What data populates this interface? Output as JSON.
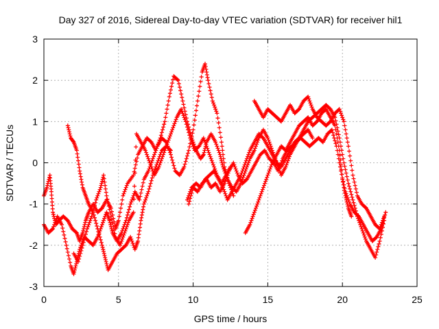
{
  "chart_data": {
    "type": "scatter",
    "title": "Day 327 of 2016, Sidereal Day-to-day VTEC variation (SDTVAR) for receiver hil1",
    "xlabel": "GPS time / hours",
    "ylabel": "SDTVAR / TECUs",
    "xlim": [
      0,
      25
    ],
    "ylim": [
      -3,
      3
    ],
    "xticks": [
      0,
      5,
      10,
      15,
      20,
      25
    ],
    "yticks": [
      -3,
      -2,
      -1,
      0,
      1,
      2,
      3
    ],
    "grid": true,
    "marker": "plus",
    "color": "#ff0000",
    "series": [
      {
        "x": [
          0.0,
          0.2,
          0.4,
          0.5,
          0.6,
          0.8,
          1.0,
          1.3,
          1.6,
          1.9,
          2.2,
          2.4,
          2.6,
          2.8,
          3.0,
          3.3,
          3.6,
          3.9,
          4.2,
          4.5,
          4.8,
          5.0,
          5.3,
          5.6,
          6.0,
          6.3,
          6.6,
          6.9,
          7.2,
          7.5,
          7.8,
          8.1,
          8.4,
          8.7,
          9.0,
          9.3,
          9.6,
          9.9,
          10.2,
          10.5,
          10.7,
          10.9,
          11.2,
          11.5,
          11.8,
          12.0,
          12.3,
          12.6,
          12.9,
          13.2,
          13.5,
          13.8,
          14.1,
          14.4,
          14.7,
          15.0,
          15.3,
          15.6,
          15.9,
          16.2,
          16.5,
          16.8,
          17.1,
          17.4,
          17.7,
          18.0,
          18.3,
          18.6,
          18.9,
          19.2,
          19.5,
          19.8,
          20.1,
          20.4,
          20.7,
          21.0,
          21.3,
          21.6,
          21.9,
          22.2,
          22.5,
          22.8
        ],
        "y": [
          -0.8,
          -0.6,
          -0.3,
          -0.7,
          -1.2,
          -1.5,
          -1.4,
          -1.3,
          -1.4,
          -1.6,
          -1.7,
          -1.9,
          -1.7,
          -1.4,
          -1.2,
          -1.0,
          -1.2,
          -1.1,
          -0.9,
          -1.1,
          -1.6,
          -1.4,
          -0.8,
          -0.5,
          -0.3,
          0.2,
          0.4,
          0.6,
          0.5,
          0.3,
          0.6,
          1.0,
          1.6,
          2.1,
          2.0,
          1.5,
          1.0,
          0.6,
          0.3,
          0.1,
          0.2,
          0.5,
          0.7,
          0.5,
          0.2,
          -0.1,
          -0.4,
          -0.6,
          -0.7,
          -0.5,
          -0.2,
          0.1,
          0.3,
          0.6,
          0.8,
          0.6,
          0.3,
          0.0,
          -0.1,
          0.1,
          0.3,
          0.5,
          0.6,
          0.8,
          1.0,
          1.1,
          1.2,
          1.3,
          1.4,
          1.3,
          1.1,
          0.6,
          0.0,
          -0.5,
          -0.9,
          -1.3,
          -1.6,
          -1.9,
          -2.1,
          -2.3,
          -1.9,
          -1.4
        ]
      },
      {
        "x": [
          0.0,
          0.3,
          0.6,
          0.9,
          1.2,
          1.5,
          1.8,
          2.0,
          2.2,
          2.4,
          2.7,
          3.0,
          3.3,
          3.6,
          3.9,
          4.2,
          4.4,
          4.6,
          4.9,
          5.2,
          5.5,
          5.8,
          6.1,
          6.4,
          6.7,
          7.0,
          7.3,
          7.6,
          7.9,
          8.2,
          8.5,
          8.8,
          9.1,
          9.4,
          9.7,
          10.0,
          10.3,
          10.6,
          10.8,
          11.0,
          11.3,
          11.6,
          11.9,
          12.1,
          12.4,
          12.7
        ],
        "y": [
          -1.5,
          -1.7,
          -1.6,
          -1.3,
          -1.5,
          -2.0,
          -2.5,
          -2.7,
          -2.4,
          -2.1,
          -1.8,
          -1.9,
          -2.0,
          -1.8,
          -1.5,
          -1.2,
          -1.4,
          -1.7,
          -1.9,
          -1.7,
          -1.4,
          -1.0,
          -0.7,
          -0.9,
          -0.4,
          -0.2,
          0.1,
          0.4,
          0.6,
          0.5,
          0.2,
          -0.2,
          -0.3,
          -0.1,
          0.3,
          0.8,
          1.5,
          2.2,
          2.4,
          2.0,
          1.5,
          1.2,
          0.5,
          -0.1,
          -0.5,
          -0.8
        ]
      },
      {
        "x": [
          1.6,
          1.8,
          2.0,
          2.2,
          2.4,
          2.6,
          2.8,
          3.0,
          3.3,
          3.6,
          3.9,
          4.1,
          4.3,
          4.6,
          4.9,
          5.2,
          5.5,
          5.8,
          6.1,
          6.3,
          6.5,
          6.7,
          7.0,
          7.3,
          7.6,
          7.9,
          8.2,
          8.5
        ],
        "y": [
          0.9,
          0.6,
          0.5,
          0.3,
          -0.2,
          -0.6,
          -0.8,
          -1.0,
          -1.2,
          -1.6,
          -2.0,
          -2.3,
          -2.6,
          -2.4,
          -2.2,
          -2.1,
          -2.0,
          -1.8,
          -2.1,
          -1.9,
          -1.4,
          -1.0,
          -0.7,
          -0.3,
          0.0,
          0.3,
          0.4,
          0.3
        ]
      },
      {
        "x": [
          2.0,
          2.3,
          2.6,
          2.9,
          3.2,
          3.5,
          3.8,
          4.0,
          4.2,
          4.5,
          4.8,
          5.1,
          5.4,
          5.7,
          6.0,
          6.2,
          6.5,
          6.8,
          7.1,
          7.4,
          7.7,
          8.0,
          8.3,
          8.6,
          8.9,
          9.2,
          9.5,
          9.8,
          10.1,
          10.4,
          10.7,
          11.0,
          11.3,
          11.6,
          11.9,
          12.2,
          12.5
        ],
        "y": [
          -2.2,
          -2.4,
          -2.0,
          -1.6,
          -1.3,
          -0.9,
          -0.6,
          -0.3,
          -0.8,
          -1.3,
          -1.8,
          -2.0,
          -1.7,
          -1.4,
          -1.2,
          0.7,
          0.5,
          0.3,
          0.0,
          -0.3,
          -0.1,
          0.2,
          0.5,
          0.8,
          1.1,
          1.3,
          1.0,
          0.6,
          0.3,
          0.4,
          0.6,
          0.3,
          0.0,
          -0.3,
          -0.5,
          -0.3,
          -0.1
        ]
      },
      {
        "x": [
          9.7,
          10.0,
          10.3,
          10.6,
          10.9,
          11.2,
          11.5,
          11.8,
          12.1,
          12.4,
          12.7,
          13.0,
          13.3,
          13.6,
          13.9,
          14.2,
          14.5,
          14.8,
          15.1,
          15.4,
          15.7,
          16.0,
          16.3,
          16.6,
          16.9,
          17.2,
          17.5,
          17.8,
          18.1,
          18.4,
          18.7,
          19.0,
          19.3,
          19.6,
          19.9,
          20.2,
          20.5,
          20.8,
          21.1,
          21.4,
          21.7,
          22.0,
          22.3,
          22.6,
          22.9
        ],
        "y": [
          -1.0,
          -0.6,
          -0.7,
          -0.5,
          -0.4,
          -0.6,
          -0.5,
          -0.7,
          -0.5,
          -0.2,
          0.0,
          -0.3,
          -0.5,
          -0.4,
          -0.2,
          0.0,
          0.2,
          0.3,
          0.1,
          0.0,
          -0.2,
          0.1,
          0.3,
          0.4,
          0.5,
          0.6,
          0.5,
          0.4,
          0.5,
          0.6,
          0.5,
          0.7,
          0.8,
          0.4,
          -0.2,
          -0.7,
          -1.0,
          -1.2,
          -1.3,
          -1.5,
          -1.7,
          -1.9,
          -1.8,
          -1.6,
          -1.2
        ]
      },
      {
        "x": [
          13.5,
          13.8,
          14.1,
          14.4,
          14.7,
          15.0,
          15.3,
          15.6,
          15.9,
          16.2,
          16.5,
          16.8,
          17.1,
          17.4,
          17.7,
          18.0,
          18.3,
          18.6,
          18.9,
          19.2,
          19.5,
          19.8,
          20.0,
          20.2,
          20.4,
          20.6
        ],
        "y": [
          -1.7,
          -1.5,
          -1.2,
          -0.9,
          -0.6,
          -0.3,
          0.0,
          0.2,
          0.4,
          0.3,
          0.5,
          0.7,
          0.9,
          1.0,
          1.1,
          0.9,
          1.0,
          1.2,
          1.3,
          1.1,
          0.9,
          0.3,
          -0.4,
          -0.8,
          -1.1,
          -1.3
        ]
      },
      {
        "x": [
          14.1,
          14.4,
          14.7,
          15.0,
          15.3,
          15.6,
          15.9,
          16.2,
          16.5,
          16.8,
          17.1,
          17.4,
          17.7,
          18.0,
          18.3,
          18.6,
          18.9,
          19.2,
          19.5,
          19.8,
          20.1,
          20.4,
          20.7,
          21.0,
          21.3,
          21.6,
          21.9,
          22.2,
          22.5,
          22.8
        ],
        "y": [
          1.5,
          1.3,
          1.1,
          1.3,
          1.2,
          1.1,
          1.0,
          1.2,
          1.4,
          1.2,
          1.3,
          1.5,
          1.6,
          1.3,
          1.1,
          1.0,
          0.9,
          1.0,
          1.2,
          1.3,
          1.0,
          0.4,
          -0.3,
          -0.8,
          -1.0,
          -1.1,
          -1.3,
          -1.5,
          -1.6,
          -1.3
        ]
      },
      {
        "x": [
          9.6,
          9.9,
          10.2,
          10.5,
          10.8,
          11.1,
          11.4,
          11.7,
          12.0,
          12.3,
          12.6,
          12.9,
          13.2,
          13.5,
          13.8,
          14.1,
          14.4,
          14.7,
          15.0,
          15.3,
          15.6,
          15.9,
          16.2,
          16.5,
          16.8,
          17.1,
          17.4,
          17.7,
          18.0
        ],
        "y": [
          -0.9,
          -0.6,
          -0.5,
          -0.6,
          -0.4,
          -0.3,
          -0.2,
          -0.4,
          -0.6,
          -0.9,
          -0.7,
          -0.5,
          -0.3,
          0.0,
          0.3,
          0.5,
          0.7,
          0.6,
          0.4,
          0.2,
          0.0,
          -0.3,
          -0.1,
          0.2,
          0.4,
          0.6,
          0.7,
          0.8,
          0.6
        ]
      }
    ]
  }
}
